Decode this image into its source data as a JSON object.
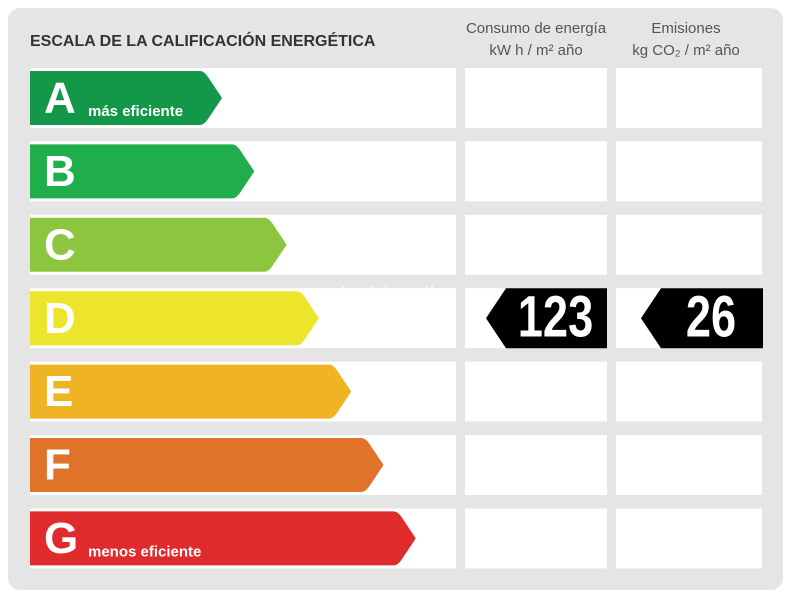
{
  "header": {
    "title": "ESCALA DE LA CALIFICACIÓN ENERGÉTICA",
    "columns": [
      {
        "title": "Consumo de energía",
        "unit": "kW h  / m² año"
      },
      {
        "title": "Emisiones",
        "unit": "kg CO₂  / m² año"
      }
    ]
  },
  "watermark": "habitaclia",
  "ratings": [
    {
      "letter": "A",
      "note": "más eficiente",
      "color": "#13984a"
    },
    {
      "letter": "B",
      "color": "#1fae4b"
    },
    {
      "letter": "C",
      "color": "#8cc63f"
    },
    {
      "letter": "D",
      "color": "#ece52b",
      "consumption": 123,
      "emissions": 26
    },
    {
      "letter": "E",
      "color": "#f0b323"
    },
    {
      "letter": "F",
      "color": "#e1722a"
    },
    {
      "letter": "G",
      "note": "menos eficiente",
      "color": "#e02b2d"
    }
  ]
}
